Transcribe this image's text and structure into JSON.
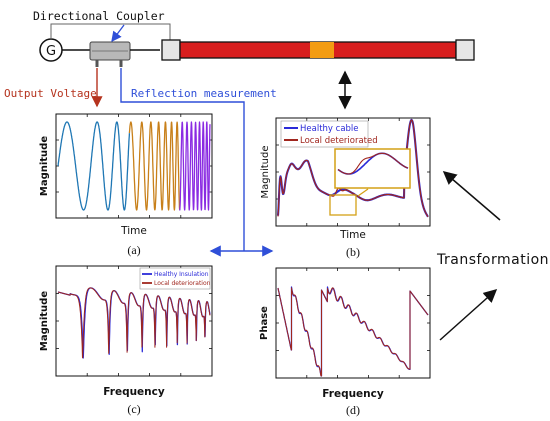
{
  "top": {
    "generator_label": "G",
    "coupler_label": "Directional Coupler",
    "output_label": "Output Voltage",
    "reflection_label": "Reflection measurement",
    "colors": {
      "cable": "#d81e1e",
      "defect": "#f39c12",
      "reflection_arrow": "#2f4fd8",
      "output_arrow": "#b5331e"
    }
  },
  "panels": {
    "a": {
      "tag": "(a)",
      "xlabel": "Time",
      "ylabel": "Magnitude"
    },
    "b": {
      "tag": "(b)",
      "xlabel": "Time",
      "ylabel": "Magnitude",
      "legend": [
        "Healthy cable",
        "Local deteriorated"
      ]
    },
    "c": {
      "tag": "(c)",
      "xlabel": "Frequency",
      "ylabel": "Magnitude",
      "legend": [
        "Healthy Insulation",
        "Local deterioration"
      ]
    },
    "d": {
      "tag": "(d)",
      "xlabel": "Frequency",
      "ylabel": "Phase"
    }
  },
  "transformation_label": "Transformation",
  "colors": {
    "healthy": "#2a2ad8",
    "deteriorated": "#a0261e",
    "chirp_start": "#1f77b4",
    "chirp_mid": "#c8801a",
    "chirp_end": "#8a2be2",
    "zoom_box": "#d4a017"
  }
}
